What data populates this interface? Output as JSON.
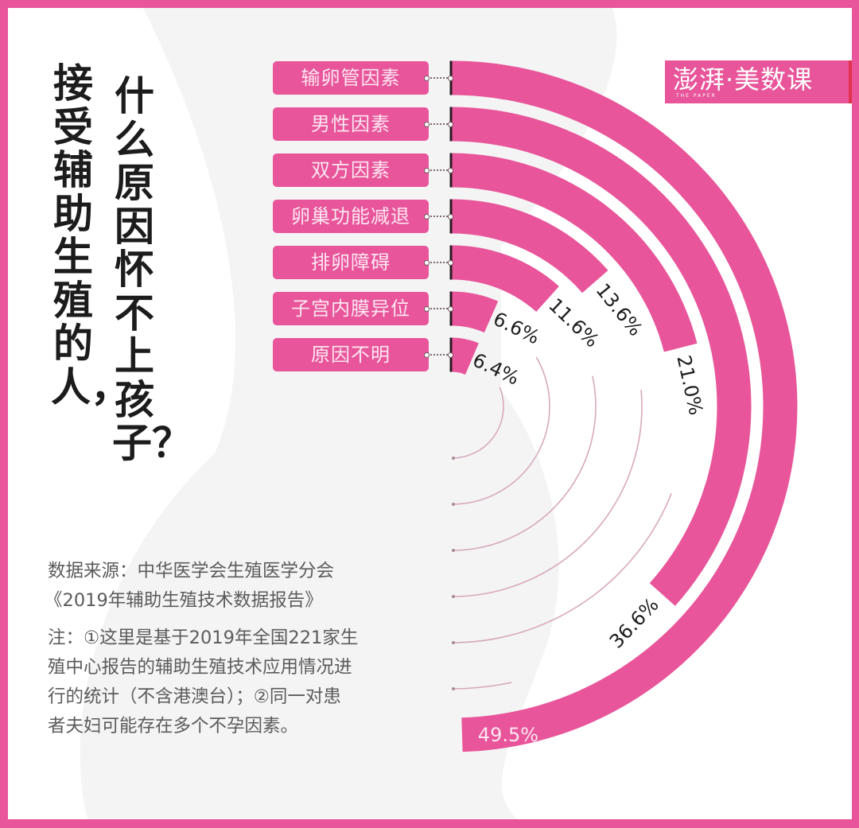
{
  "title": {
    "column1": "接受辅助生殖的人，",
    "column2": "什么原因怀不上孩子？"
  },
  "brand": {
    "logo_text": "澎湃·美数课",
    "logo_subtext": "THE PAPER"
  },
  "source": {
    "line1": "数据来源：中华医学会生殖医学分会",
    "line2": "《2019年辅助生殖技术数据报告》"
  },
  "notes": {
    "line1": "注：①这里是基于2019年全国221家生",
    "line2": "殖中心报告的辅助生殖技术应用情况进",
    "line3": "行的统计（不含港澳台）；②同一对患",
    "line4": "者夫妇可能存在多个不孕因素。"
  },
  "colors": {
    "accent": "#e8559a",
    "track": "#f4f4f5",
    "guide": "#d7a9bd",
    "axis": "#2a1a22",
    "text_dark": "#1c1c1c",
    "note_text": "#5b5b5b"
  },
  "chart_data": {
    "type": "bar",
    "variant": "radial-bar",
    "title": "什么原因怀不上孩子？",
    "categories": [
      "输卵管因素",
      "男性因素",
      "双方因素",
      "卵巢功能减退",
      "排卵障碍",
      "子宫内膜异位",
      "原因不明"
    ],
    "values": [
      49.5,
      36.6,
      21.0,
      13.6,
      11.6,
      6.6,
      6.4
    ],
    "labels": [
      "49.5%",
      "36.6%",
      "21.0%",
      "13.6%",
      "11.6%",
      "6.6%",
      "6.4%"
    ],
    "unit": "%",
    "scale_full_circle": 100,
    "xlabel": "",
    "ylabel": "",
    "grid": false,
    "legend": "none"
  }
}
